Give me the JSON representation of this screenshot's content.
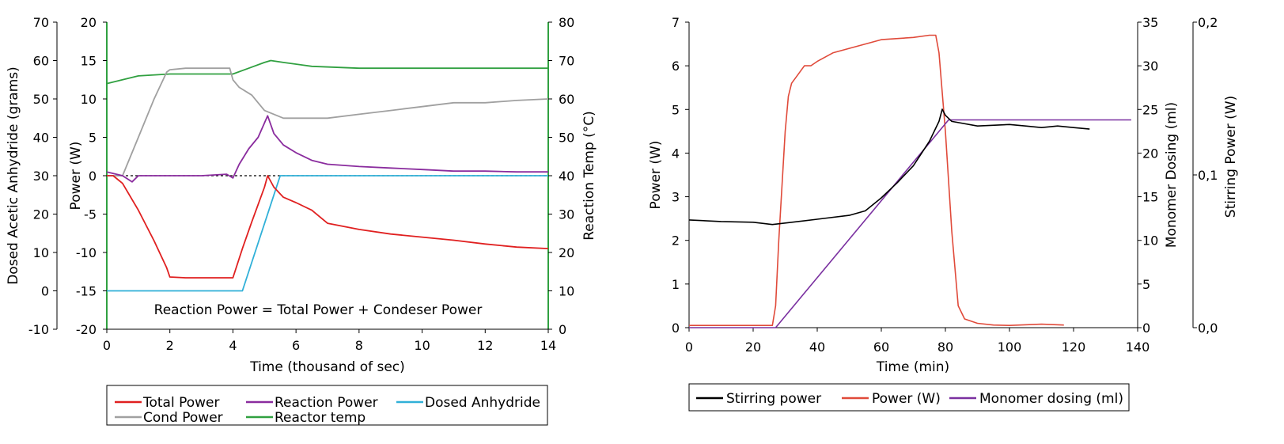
{
  "chart_data": [
    {
      "type": "line",
      "xlabel": "Time (thousand of sec)",
      "x_ticks": [
        "0",
        "2",
        "4",
        "6",
        "8",
        "10",
        "12",
        "14"
      ],
      "xlim": [
        0,
        14
      ],
      "left_outer_axis": {
        "label": "Dosed Acetic Anhydride (grams)",
        "lim": [
          -10,
          70
        ],
        "ticks": [
          "70",
          "60",
          "50",
          "40",
          "30",
          "20",
          "10",
          "0",
          "-10"
        ]
      },
      "left_axis": {
        "label": "Power (W)",
        "lim": [
          -20,
          20
        ],
        "ticks": [
          "20",
          "15",
          "10",
          "5",
          "0",
          "-5",
          "-10",
          "-15",
          "-20"
        ]
      },
      "right_axis": {
        "label": "Reaction Temp (°C)",
        "lim": [
          0,
          80
        ],
        "ticks": [
          "80",
          "70",
          "60",
          "50",
          "40",
          "30",
          "20",
          "10",
          "0"
        ]
      },
      "annotation": "Reaction Power = Total Power + Condeser Power",
      "legend": [
        "Total Power",
        "Reaction Power",
        "Dosed Anhydride",
        "Cond Power",
        "Reactor temp"
      ],
      "series": [
        {
          "name": "Total Power",
          "axis": "power",
          "color": "#e02020",
          "x": [
            0,
            0.2,
            0.5,
            1.0,
            1.5,
            1.9,
            2.0,
            2.5,
            3.0,
            3.5,
            4.0,
            4.3,
            4.6,
            5.0,
            5.1,
            5.3,
            5.6,
            6.0,
            6.5,
            7.0,
            8.0,
            9.0,
            10.0,
            11.0,
            12.0,
            13.0,
            14.0
          ],
          "y": [
            0,
            0,
            -1,
            -4.5,
            -8.5,
            -12,
            -13.2,
            -13.3,
            -13.3,
            -13.3,
            -13.3,
            -9.5,
            -6,
            -1.5,
            0,
            -1.5,
            -2.8,
            -3.5,
            -4.5,
            -6.2,
            -7,
            -7.6,
            -8,
            -8.4,
            -8.9,
            -9.3,
            -9.5
          ]
        },
        {
          "name": "Reaction Power",
          "axis": "power",
          "color": "#8a2c9e",
          "x": [
            0,
            0.5,
            0.8,
            1.0,
            2.0,
            3.0,
            3.8,
            4.0,
            4.2,
            4.5,
            4.8,
            5.1,
            5.3,
            5.6,
            6.0,
            6.5,
            7.0,
            8.0,
            9.0,
            10.0,
            11.0,
            12.0,
            13.0,
            14.0
          ],
          "y": [
            0.5,
            0,
            -0.8,
            0,
            0,
            0,
            0.2,
            -0.3,
            1.5,
            3.5,
            5,
            7.8,
            5.5,
            4,
            3,
            2,
            1.5,
            1.2,
            1.0,
            0.8,
            0.6,
            0.6,
            0.5,
            0.5
          ]
        },
        {
          "name": "Dosed Anhydride",
          "axis": "grams",
          "color": "#30b0d8",
          "x": [
            0,
            4.3,
            5.5,
            14
          ],
          "y": [
            0,
            0,
            30,
            30
          ]
        },
        {
          "name": "Cond Power",
          "axis": "power",
          "color": "#a0a0a0",
          "x": [
            0,
            0.5,
            1.0,
            1.5,
            1.9,
            2.0,
            2.5,
            3.0,
            3.5,
            3.9,
            4.0,
            4.2,
            4.6,
            5.0,
            5.3,
            5.6,
            6.0,
            7.0,
            8.0,
            9.0,
            10.0,
            11.0,
            12.0,
            13.0,
            14.0
          ],
          "y": [
            0,
            0,
            5,
            10,
            13.5,
            13.8,
            14,
            14,
            14,
            14,
            12.5,
            11.5,
            10.5,
            8.5,
            8,
            7.5,
            7.5,
            7.5,
            8,
            8.5,
            9,
            9.5,
            9.5,
            9.8,
            10
          ]
        },
        {
          "name": "Reactor temp",
          "axis": "temp",
          "color": "#30a040",
          "x": [
            0,
            0.5,
            1.0,
            2.0,
            3.0,
            4.0,
            4.5,
            5.0,
            5.2,
            5.6,
            6.5,
            8.0,
            10.0,
            12.0,
            14.0
          ],
          "y": [
            64,
            65,
            66,
            66.5,
            66.5,
            66.5,
            68,
            69.5,
            70,
            69.5,
            68.5,
            68,
            68,
            68,
            68
          ]
        }
      ]
    },
    {
      "type": "line",
      "xlabel": "Time (min)",
      "x_ticks": [
        "0",
        "20",
        "40",
        "60",
        "80",
        "100",
        "120",
        "140"
      ],
      "xlim": [
        0,
        140
      ],
      "left_axis": {
        "label": "Power (W)",
        "lim": [
          0,
          7
        ],
        "ticks": [
          "7",
          "6",
          "5",
          "4",
          "3",
          "2",
          "1",
          "0"
        ]
      },
      "right_axis": {
        "label": "Monomer Dosing (ml)",
        "lim": [
          0,
          35
        ],
        "ticks": [
          "35",
          "30",
          "25",
          "20",
          "15",
          "10",
          "5",
          "0"
        ]
      },
      "right_outer_axis": {
        "label": "Stirring Power (W)",
        "lim": [
          0,
          0.2
        ],
        "ticks": [
          "0,2",
          "0,1",
          "0,0"
        ]
      },
      "legend": [
        "Stirring power",
        "Power (W)",
        "Monomer dosing (ml)"
      ],
      "series": [
        {
          "name": "Stirring power",
          "axis": "stirring",
          "color": "#000000",
          "x": [
            0,
            10,
            20,
            26,
            30,
            40,
            50,
            55,
            60,
            65,
            70,
            75,
            78,
            79,
            80,
            82,
            90,
            100,
            105,
            110,
            115,
            120,
            125
          ],
          "y": [
            0.0705,
            0.0695,
            0.069,
            0.0675,
            0.0685,
            0.071,
            0.0735,
            0.0765,
            0.085,
            0.095,
            0.106,
            0.122,
            0.135,
            0.143,
            0.139,
            0.135,
            0.132,
            0.133,
            0.132,
            0.131,
            0.132,
            0.131,
            0.13
          ]
        },
        {
          "name": "Power (W)",
          "axis": "power",
          "color": "#e04a3a",
          "x": [
            0,
            10,
            20,
            26,
            27,
            28,
            30,
            31,
            32,
            34,
            36,
            38,
            40,
            45,
            50,
            55,
            60,
            70,
            75,
            77,
            78,
            80,
            82,
            84,
            86,
            90,
            95,
            100,
            110,
            117
          ],
          "y": [
            0.05,
            0.05,
            0.05,
            0.05,
            0.5,
            2,
            4.5,
            5.3,
            5.6,
            5.8,
            6.0,
            6.0,
            6.1,
            6.3,
            6.4,
            6.5,
            6.6,
            6.65,
            6.7,
            6.7,
            6.3,
            4.5,
            2.2,
            0.5,
            0.2,
            0.1,
            0.06,
            0.05,
            0.08,
            0.06
          ]
        },
        {
          "name": "Monomer dosing (ml)",
          "axis": "dosing",
          "color": "#7a30a0",
          "x": [
            0,
            27,
            81,
            138
          ],
          "y": [
            0,
            0,
            23.8,
            23.8
          ]
        }
      ]
    }
  ]
}
